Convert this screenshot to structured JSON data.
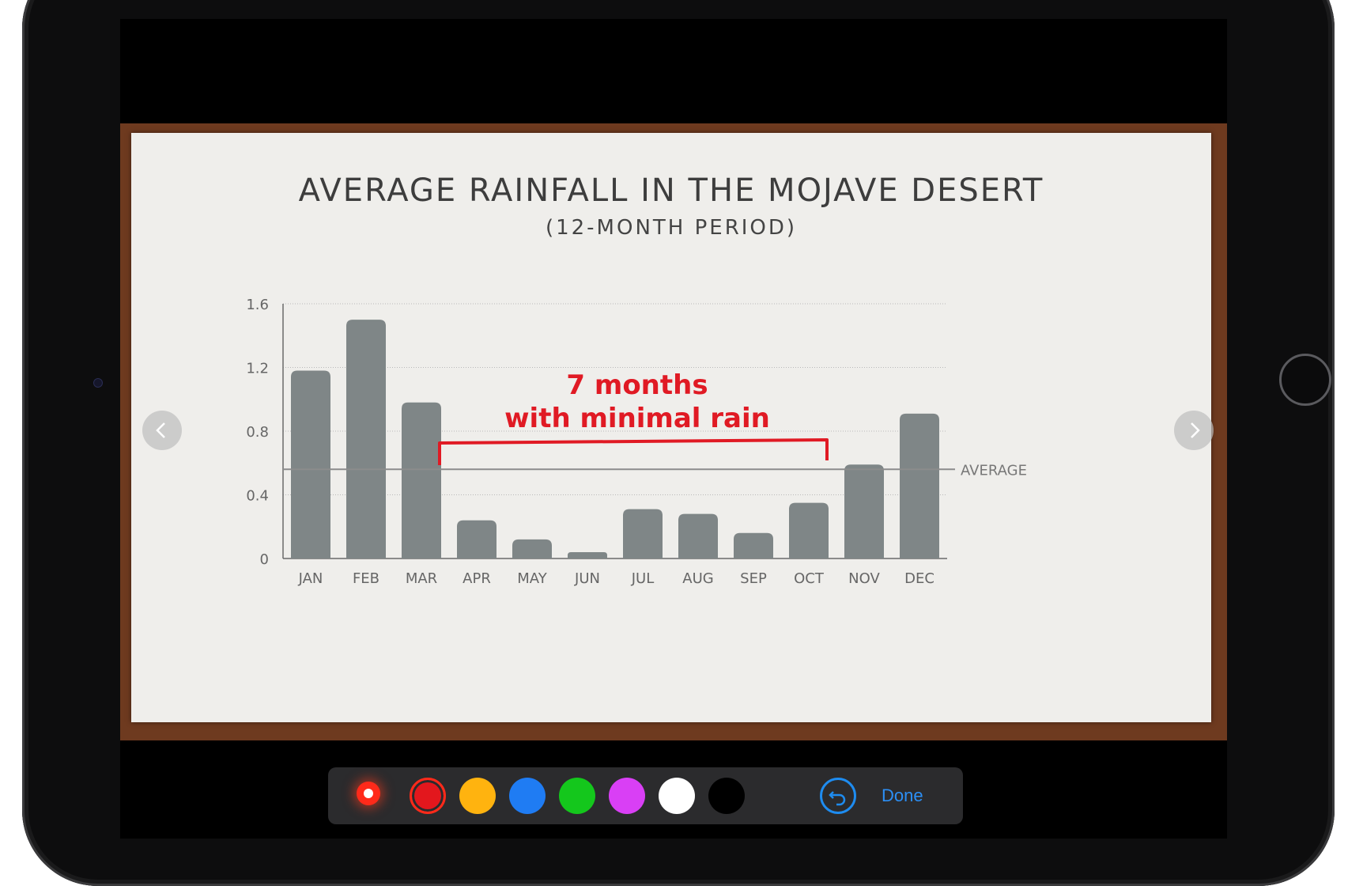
{
  "slide": {
    "title": "AVERAGE RAINFALL IN THE MOJAVE DESERT",
    "subtitle": "(12-MONTH PERIOD)",
    "annotation_line1": "7 months",
    "annotation_line2": "with minimal rain",
    "annotation_color": "#e01a24"
  },
  "chart_data": {
    "type": "bar",
    "categories": [
      "JAN",
      "FEB",
      "MAR",
      "APR",
      "MAY",
      "JUN",
      "JUL",
      "AUG",
      "SEP",
      "OCT",
      "NOV",
      "DEC"
    ],
    "values": [
      1.18,
      1.5,
      0.98,
      0.24,
      0.12,
      0.04,
      0.31,
      0.28,
      0.16,
      0.35,
      0.59,
      0.91
    ],
    "yticks": [
      "0",
      "0.4",
      "0.8",
      "1.2",
      "1.6"
    ],
    "ylim": [
      0,
      1.6
    ],
    "reference_line": {
      "label": "AVERAGE",
      "value": 0.56
    },
    "bar_color": "#7f8687",
    "grid": true
  },
  "navigation": {
    "prev_icon": "chevron-left-icon",
    "next_icon": "chevron-right-icon"
  },
  "toolbar": {
    "pen_icon": "pen-tool-icon",
    "colors": [
      {
        "name": "red",
        "hex": "#e3171d",
        "selected": true
      },
      {
        "name": "yellow",
        "hex": "#ffb30f"
      },
      {
        "name": "blue",
        "hex": "#1f7cf3"
      },
      {
        "name": "green",
        "hex": "#14c71c"
      },
      {
        "name": "purple",
        "hex": "#d93ff5"
      },
      {
        "name": "white",
        "hex": "#ffffff"
      },
      {
        "name": "black",
        "hex": "#000000"
      }
    ],
    "undo_icon": "undo-icon",
    "done_label": "Done"
  }
}
